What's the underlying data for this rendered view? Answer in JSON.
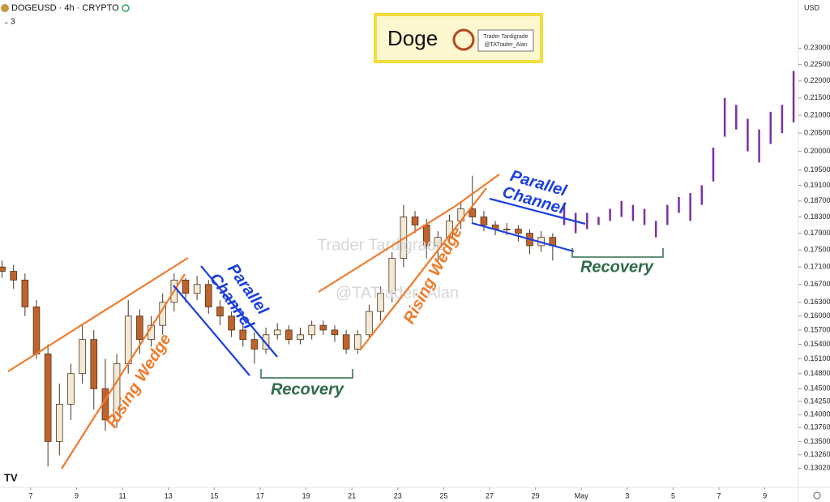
{
  "header": {
    "symbol": "DOGEUSD · 4h · CRYPTO",
    "indicator_count": "3"
  },
  "logo": {
    "title": "Doge",
    "line1": "Trader Tardigrade",
    "line2": "@TATrader_Alan"
  },
  "watermark": [
    "Trader Tardigrade",
    "@TATrader_Alan"
  ],
  "annotations": {
    "rising_wedge_1": "Rising Wedge",
    "parallel_channel_1": [
      "Parallel",
      "Channel"
    ],
    "recovery_1": "Recovery",
    "rising_wedge_2": "Rising Wedge",
    "parallel_channel_2": [
      "Parallel",
      "Channel"
    ],
    "recovery_2": "Recovery"
  },
  "chart_data": {
    "type": "candlestick",
    "y_axis_label": "USD",
    "log_scale": true,
    "grid": false,
    "xlim": [
      -1.34,
      33.46
    ],
    "ylim": [
      0.127,
      0.2455
    ],
    "xticks": [
      {
        "value": 0,
        "label": "7"
      },
      {
        "value": 2,
        "label": "9"
      },
      {
        "value": 4,
        "label": "11"
      },
      {
        "value": 6,
        "label": "13"
      },
      {
        "value": 8,
        "label": "15"
      },
      {
        "value": 10,
        "label": "17"
      },
      {
        "value": 12,
        "label": "19"
      },
      {
        "value": 14,
        "label": "21"
      },
      {
        "value": 16,
        "label": "23"
      },
      {
        "value": 18,
        "label": "25"
      },
      {
        "value": 20,
        "label": "27"
      },
      {
        "value": 22,
        "label": "29"
      },
      {
        "value": 24,
        "label": "May"
      },
      {
        "value": 26,
        "label": "3"
      },
      {
        "value": 28,
        "label": "5"
      },
      {
        "value": 30,
        "label": "7"
      },
      {
        "value": 32,
        "label": "9"
      }
    ],
    "yticks": [
      {
        "value": 0.1302,
        "label": "0.13020"
      },
      {
        "value": 0.1326,
        "label": "0.13260"
      },
      {
        "value": 0.135,
        "label": "0.13500"
      },
      {
        "value": 0.1376,
        "label": "0.13760"
      },
      {
        "value": 0.14,
        "label": "0.14000"
      },
      {
        "value": 0.1425,
        "label": "0.14250"
      },
      {
        "value": 0.145,
        "label": "0.14500"
      },
      {
        "value": 0.148,
        "label": "0.14800"
      },
      {
        "value": 0.151,
        "label": "0.15100"
      },
      {
        "value": 0.154,
        "label": "0.15400"
      },
      {
        "value": 0.157,
        "label": "0.15700"
      },
      {
        "value": 0.16,
        "label": "0.16000"
      },
      {
        "value": 0.163,
        "label": "0.16300"
      },
      {
        "value": 0.167,
        "label": "0.16700"
      },
      {
        "value": 0.171,
        "label": "0.17100"
      },
      {
        "value": 0.175,
        "label": "0.17500"
      },
      {
        "value": 0.179,
        "label": "0.17900"
      },
      {
        "value": 0.183,
        "label": "0.18300"
      },
      {
        "value": 0.187,
        "label": "0.18700"
      },
      {
        "value": 0.191,
        "label": "0.19100"
      },
      {
        "value": 0.195,
        "label": "0.19500"
      },
      {
        "value": 0.2,
        "label": "0.20000"
      },
      {
        "value": 0.205,
        "label": "0.20500"
      },
      {
        "value": 0.21,
        "label": "0.21000"
      },
      {
        "value": 0.215,
        "label": "0.21500"
      },
      {
        "value": 0.22,
        "label": "0.22000"
      },
      {
        "value": 0.225,
        "label": "0.22500"
      },
      {
        "value": 0.23,
        "label": "0.23000"
      }
    ],
    "up_color": "#f3ead6",
    "down_color": "#c0632b",
    "outline_color": "#4a3420",
    "candles": {
      "x": [
        -1.25,
        -0.75,
        -0.25,
        0.25,
        0.75,
        1.25,
        1.75,
        2.25,
        2.75,
        3.25,
        3.75,
        4.25,
        4.75,
        5.25,
        5.75,
        6.25,
        6.75,
        7.25,
        7.75,
        8.25,
        8.75,
        9.25,
        9.75,
        10.25,
        10.75,
        11.25,
        11.75,
        12.25,
        12.75,
        13.25,
        13.75,
        14.25,
        14.75,
        15.25,
        15.75,
        16.25,
        16.75,
        17.25,
        17.75,
        18.25,
        18.75,
        19.25,
        19.75,
        20.25,
        20.75,
        21.25,
        21.75,
        22.25,
        22.75
      ],
      "open": [
        0.171,
        0.17,
        0.168,
        0.162,
        0.152,
        0.135,
        0.142,
        0.148,
        0.155,
        0.145,
        0.139,
        0.15,
        0.16,
        0.155,
        0.158,
        0.163,
        0.168,
        0.165,
        0.167,
        0.162,
        0.16,
        0.157,
        0.155,
        0.153,
        0.156,
        0.157,
        0.155,
        0.156,
        0.158,
        0.157,
        0.156,
        0.153,
        0.156,
        0.161,
        0.165,
        0.173,
        0.183,
        0.181,
        0.176,
        0.178,
        0.182,
        0.185,
        0.183,
        0.181,
        0.18,
        0.18,
        0.179,
        0.176,
        0.178
      ],
      "high": [
        0.1725,
        0.1715,
        0.1695,
        0.1635,
        0.154,
        0.146,
        0.15,
        0.158,
        0.157,
        0.151,
        0.152,
        0.1635,
        0.1615,
        0.16,
        0.165,
        0.1695,
        0.1685,
        0.169,
        0.168,
        0.1635,
        0.161,
        0.1585,
        0.1565,
        0.1575,
        0.1585,
        0.158,
        0.1575,
        0.159,
        0.159,
        0.158,
        0.157,
        0.157,
        0.1625,
        0.1665,
        0.1745,
        0.186,
        0.1845,
        0.1825,
        0.1795,
        0.1835,
        0.187,
        0.1935,
        0.1845,
        0.182,
        0.1815,
        0.181,
        0.18,
        0.1795,
        0.179
      ],
      "low": [
        0.1685,
        0.166,
        0.16,
        0.151,
        0.1305,
        0.1325,
        0.139,
        0.146,
        0.141,
        0.137,
        0.1375,
        0.148,
        0.152,
        0.1535,
        0.156,
        0.161,
        0.163,
        0.1635,
        0.1605,
        0.158,
        0.1555,
        0.1535,
        0.15,
        0.152,
        0.155,
        0.154,
        0.154,
        0.155,
        0.156,
        0.1545,
        0.152,
        0.152,
        0.155,
        0.159,
        0.163,
        0.171,
        0.179,
        0.173,
        0.172,
        0.1765,
        0.18,
        0.1815,
        0.1795,
        0.1785,
        0.1785,
        0.177,
        0.174,
        0.1745,
        0.1725
      ],
      "close": [
        0.17,
        0.168,
        0.162,
        0.152,
        0.135,
        0.142,
        0.148,
        0.155,
        0.145,
        0.139,
        0.15,
        0.16,
        0.155,
        0.158,
        0.163,
        0.168,
        0.165,
        0.167,
        0.162,
        0.16,
        0.157,
        0.155,
        0.153,
        0.156,
        0.157,
        0.155,
        0.156,
        0.158,
        0.157,
        0.156,
        0.153,
        0.156,
        0.161,
        0.165,
        0.173,
        0.183,
        0.181,
        0.176,
        0.178,
        0.182,
        0.185,
        0.183,
        0.181,
        0.18,
        0.18,
        0.179,
        0.176,
        0.178,
        0.176
      ]
    },
    "projection": {
      "color": "#7b2fa5",
      "x": [
        23.25,
        23.75,
        24.25,
        24.75,
        25.25,
        25.75,
        26.25,
        26.75,
        27.25,
        27.75,
        28.25,
        28.75,
        29.25,
        29.75,
        30.25,
        30.75,
        31.25,
        31.75,
        32.25,
        32.75,
        33.25
      ],
      "low": [
        0.181,
        0.179,
        0.18,
        0.181,
        0.182,
        0.183,
        0.182,
        0.181,
        0.178,
        0.181,
        0.184,
        0.182,
        0.186,
        0.192,
        0.204,
        0.206,
        0.2,
        0.197,
        0.202,
        0.205,
        0.208
      ],
      "high": [
        0.186,
        0.184,
        0.184,
        0.183,
        0.185,
        0.187,
        0.186,
        0.185,
        0.182,
        0.186,
        0.188,
        0.189,
        0.191,
        0.201,
        0.215,
        0.213,
        0.209,
        0.206,
        0.211,
        0.213,
        0.223
      ]
    }
  }
}
